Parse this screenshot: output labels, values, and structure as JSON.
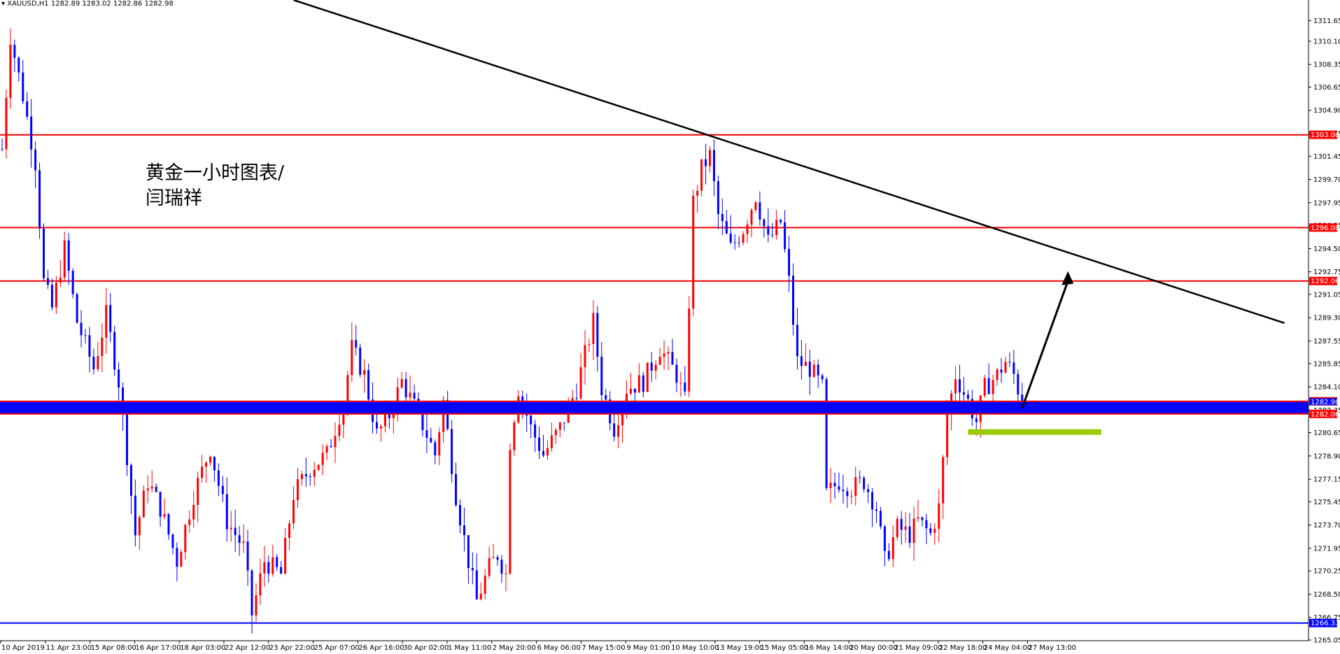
{
  "symbol_label": "XAUUSD,H1",
  "ohlc_label": "1282.89 1283.02 1282.86 1282.98",
  "annotation": {
    "line1": "黄金一小时图表/",
    "line2": "闫瑞祥"
  },
  "colors": {
    "background": "#ffffff",
    "bull_candle": "#ff0000",
    "bear_candle": "#0000ff",
    "level_line": "#ff0000",
    "support_zone": "#0000ff",
    "low_line": "#0000ff",
    "trendline": "#000000",
    "target_marker": "#99cc00"
  },
  "chart_data": {
    "type": "candlestick",
    "timeframe": "H1",
    "ylim": [
      1265.0,
      1313.2
    ],
    "y_ticks": [
      "1311.65",
      "1310.10",
      "1308.35",
      "1306.65",
      "1304.90",
      "1303.15",
      "1301.45",
      "1299.70",
      "1297.95",
      "1296.25",
      "1294.50",
      "1292.75",
      "1291.05",
      "1289.30",
      "1287.55",
      "1285.85",
      "1284.10",
      "1282.35",
      "1280.65",
      "1278.90",
      "1277.15",
      "1275.45",
      "1273.70",
      "1271.95",
      "1270.25",
      "1268.50",
      "1266.75",
      "1265.05"
    ],
    "x_ticks": [
      "10 Apr 2019",
      "11 Apr 23:00",
      "15 Apr 08:00",
      "16 Apr 17:00",
      "18 Apr 03:00",
      "22 Apr 12:00",
      "23 Apr 22:00",
      "25 Apr 07:00",
      "26 Apr 16:00",
      "30 Apr 02:00",
      "1 May 11:00",
      "2 May 20:00",
      "6 May 06:00",
      "7 May 15:00",
      "9 May 01:00",
      "10 May 10:00",
      "13 May 19:00",
      "15 May 05:00",
      "16 May 14:00",
      "20 May 00:00",
      "21 May 09:00",
      "22 May 18:00",
      "24 May 04:00",
      "27 May 13:00"
    ],
    "price_levels": [
      {
        "value": 1303.06,
        "label": "1303.06",
        "color": "#ff0000",
        "style": "line"
      },
      {
        "value": 1296.08,
        "label": "1296.08",
        "color": "#ff0000",
        "style": "line"
      },
      {
        "value": 1292.06,
        "label": "1292.06",
        "color": "#ff0000",
        "style": "line"
      },
      {
        "value": 1283.01,
        "label": "1283.01",
        "color": "#ff0000",
        "style": "zone_top"
      },
      {
        "value": 1282.06,
        "label": "1282.06",
        "color": "#ff0000",
        "style": "zone_bottom"
      },
      {
        "value": 1266.33,
        "label": "1266.33",
        "color": "#0000ff",
        "style": "line"
      }
    ],
    "support_zone": {
      "top": 1283.01,
      "bottom": 1282.06,
      "current_price_label": "1282.98"
    },
    "trendline": {
      "start": {
        "bar": 70,
        "price": 1313.2
      },
      "end": {
        "bar": 308,
        "price": 1288.9
      }
    },
    "arrow": {
      "from": {
        "bar": 245,
        "price": 1282.5
      },
      "to": {
        "bar": 256,
        "price": 1292.8
      }
    },
    "target_zone": {
      "price": 1280.7,
      "start_bar": 232,
      "end_bar": 264
    },
    "anchors": [
      {
        "bar": 0,
        "price": 1302
      },
      {
        "bar": 2,
        "price": 1310.5
      },
      {
        "bar": 5,
        "price": 1306
      },
      {
        "bar": 8,
        "price": 1301
      },
      {
        "bar": 10,
        "price": 1292
      },
      {
        "bar": 12,
        "price": 1290
      },
      {
        "bar": 15,
        "price": 1294.5
      },
      {
        "bar": 18,
        "price": 1289
      },
      {
        "bar": 22,
        "price": 1285.5
      },
      {
        "bar": 25,
        "price": 1289.5
      },
      {
        "bar": 28,
        "price": 1284.5
      },
      {
        "bar": 30,
        "price": 1279
      },
      {
        "bar": 32,
        "price": 1273
      },
      {
        "bar": 35,
        "price": 1277
      },
      {
        "bar": 38,
        "price": 1275
      },
      {
        "bar": 42,
        "price": 1271
      },
      {
        "bar": 46,
        "price": 1276
      },
      {
        "bar": 50,
        "price": 1279.5
      },
      {
        "bar": 54,
        "price": 1274
      },
      {
        "bar": 58,
        "price": 1272
      },
      {
        "bar": 60,
        "price": 1267
      },
      {
        "bar": 63,
        "price": 1271
      },
      {
        "bar": 67,
        "price": 1270
      },
      {
        "bar": 70,
        "price": 1276
      },
      {
        "bar": 74,
        "price": 1278
      },
      {
        "bar": 78,
        "price": 1279
      },
      {
        "bar": 82,
        "price": 1283
      },
      {
        "bar": 84,
        "price": 1287
      },
      {
        "bar": 87,
        "price": 1285
      },
      {
        "bar": 90,
        "price": 1280.5
      },
      {
        "bar": 93,
        "price": 1282
      },
      {
        "bar": 96,
        "price": 1284.5
      },
      {
        "bar": 100,
        "price": 1282
      },
      {
        "bar": 104,
        "price": 1279
      },
      {
        "bar": 106,
        "price": 1283
      },
      {
        "bar": 109,
        "price": 1276
      },
      {
        "bar": 112,
        "price": 1271
      },
      {
        "bar": 114,
        "price": 1268
      },
      {
        "bar": 117,
        "price": 1270.5
      },
      {
        "bar": 119,
        "price": 1271.5
      },
      {
        "bar": 121,
        "price": 1270
      },
      {
        "bar": 122,
        "price": 1280
      },
      {
        "bar": 124,
        "price": 1284
      },
      {
        "bar": 127,
        "price": 1281
      },
      {
        "bar": 130,
        "price": 1279
      },
      {
        "bar": 134,
        "price": 1281
      },
      {
        "bar": 138,
        "price": 1284
      },
      {
        "bar": 142,
        "price": 1289
      },
      {
        "bar": 144,
        "price": 1284
      },
      {
        "bar": 147,
        "price": 1281
      },
      {
        "bar": 150,
        "price": 1284
      },
      {
        "bar": 154,
        "price": 1284.5
      },
      {
        "bar": 158,
        "price": 1287
      },
      {
        "bar": 162,
        "price": 1285
      },
      {
        "bar": 164,
        "price": 1283
      },
      {
        "bar": 166,
        "price": 1298
      },
      {
        "bar": 168,
        "price": 1300.5
      },
      {
        "bar": 170,
        "price": 1301.5
      },
      {
        "bar": 172,
        "price": 1297
      },
      {
        "bar": 175,
        "price": 1294.5
      },
      {
        "bar": 178,
        "price": 1296
      },
      {
        "bar": 181,
        "price": 1298.5
      },
      {
        "bar": 184,
        "price": 1295
      },
      {
        "bar": 187,
        "price": 1296.5
      },
      {
        "bar": 189,
        "price": 1292
      },
      {
        "bar": 191,
        "price": 1286
      },
      {
        "bar": 194,
        "price": 1285.5
      },
      {
        "bar": 197,
        "price": 1284
      },
      {
        "bar": 198,
        "price": 1276
      },
      {
        "bar": 201,
        "price": 1277
      },
      {
        "bar": 204,
        "price": 1276.5
      },
      {
        "bar": 207,
        "price": 1277
      },
      {
        "bar": 210,
        "price": 1275
      },
      {
        "bar": 212,
        "price": 1271
      },
      {
        "bar": 215,
        "price": 1273.5
      },
      {
        "bar": 218,
        "price": 1273
      },
      {
        "bar": 220,
        "price": 1274
      },
      {
        "bar": 223,
        "price": 1273
      },
      {
        "bar": 225,
        "price": 1275
      },
      {
        "bar": 227,
        "price": 1282
      },
      {
        "bar": 229,
        "price": 1285
      },
      {
        "bar": 232,
        "price": 1283
      },
      {
        "bar": 234,
        "price": 1281.5
      },
      {
        "bar": 236,
        "price": 1284
      },
      {
        "bar": 239,
        "price": 1285
      },
      {
        "bar": 241,
        "price": 1286
      },
      {
        "bar": 243,
        "price": 1285
      },
      {
        "bar": 245,
        "price": 1282.9
      }
    ]
  }
}
